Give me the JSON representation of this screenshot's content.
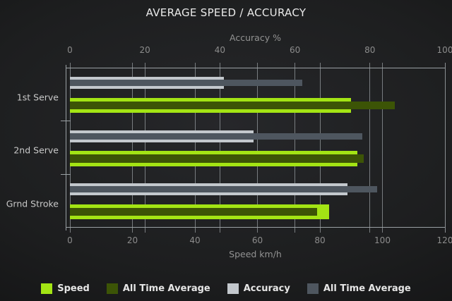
{
  "chart_data": {
    "type": "bar",
    "orientation": "horizontal",
    "title": "AVERAGE SPEED / ACCURACY",
    "categories": [
      "1st Serve",
      "2nd Serve",
      "Grnd Stroke"
    ],
    "axes": {
      "top": {
        "label": "Accuracy %",
        "min": 0,
        "max": 100,
        "ticks": [
          0,
          20,
          40,
          60,
          80,
          100
        ]
      },
      "bottom": {
        "label": "Speed km/h",
        "min": 0,
        "max": 120,
        "ticks": [
          0,
          20,
          40,
          60,
          80,
          100,
          120
        ]
      }
    },
    "grid": "vertical-gridlines-for-both-axes",
    "legend_position": "bottom",
    "series": [
      {
        "key": "speed",
        "name": "Speed",
        "axis": "bottom",
        "color": "#a3e414",
        "values": [
          90,
          92,
          83
        ]
      },
      {
        "key": "speed-all-time",
        "name": "All Time Average",
        "axis": "bottom",
        "color": "#3c5406",
        "values": [
          104,
          94,
          79
        ]
      },
      {
        "key": "accuracy",
        "name": "Accuracy",
        "axis": "top",
        "color": "#c3c8cd",
        "values": [
          41,
          49,
          74
        ]
      },
      {
        "key": "accuracy-all-time",
        "name": "All Time Average",
        "axis": "top",
        "color": "#4e565f",
        "values": [
          62,
          78,
          82
        ]
      }
    ]
  },
  "colors": {
    "background_center": "#26272a",
    "background_edge": "#0e0e0f",
    "grid": "#8f9397",
    "frame": "#9aa0a4",
    "tick_label": "#8c8c8c",
    "axis_title": "#929292",
    "category_label": "#c9c9c9",
    "title": "#e9e9e9",
    "legend_text": "#e6e6e6"
  }
}
